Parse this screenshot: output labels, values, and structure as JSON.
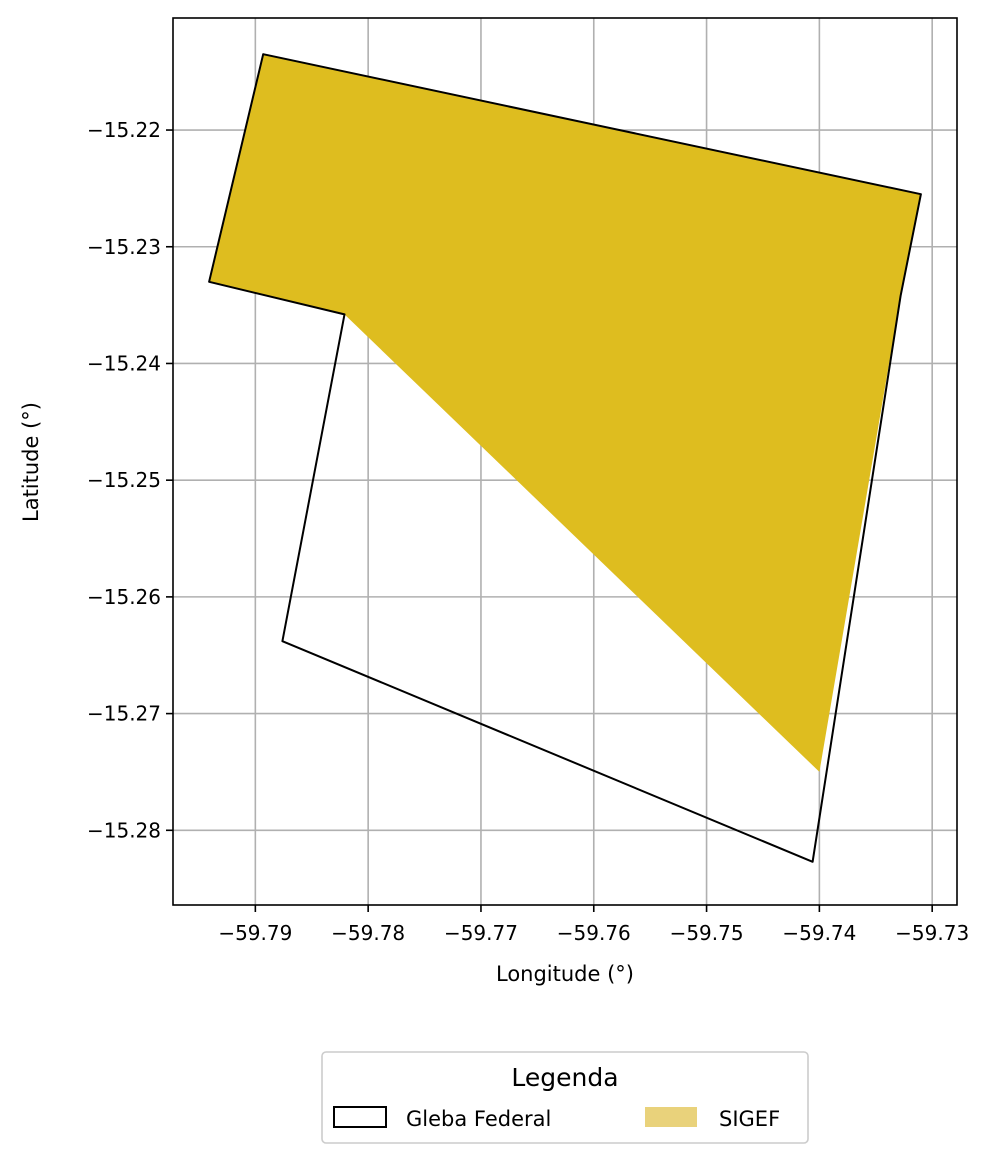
{
  "chart_data": {
    "type": "map",
    "xlabel": "Longitude (°)",
    "ylabel": "Latitude (°)",
    "xlim": [
      -59.7973,
      -59.7278
    ],
    "ylim": [
      -15.2864,
      -15.2104
    ],
    "xticks": [
      -59.79,
      -59.78,
      -59.77,
      -59.76,
      -59.75,
      -59.74,
      -59.73
    ],
    "xtick_labels": [
      "−59.79",
      "−59.78",
      "−59.77",
      "−59.76",
      "−59.75",
      "−59.74",
      "−59.73"
    ],
    "yticks": [
      -15.22,
      -15.23,
      -15.24,
      -15.25,
      -15.26,
      -15.27,
      -15.28
    ],
    "ytick_labels": [
      "−15.22",
      "−15.23",
      "−15.24",
      "−15.25",
      "−15.26",
      "−15.27",
      "−15.28"
    ],
    "grid": true,
    "layers": [
      {
        "name": "SIGEF",
        "kind": "filled-polygon",
        "fill": "#DEBD1F",
        "points": [
          [
            -59.7893,
            -15.2135
          ],
          [
            -59.731,
            -15.2255
          ],
          [
            -59.7328,
            -15.2342
          ],
          [
            -59.74,
            -15.275
          ],
          [
            -59.7821,
            -15.2358
          ],
          [
            -59.7941,
            -15.233
          ]
        ]
      },
      {
        "name": "Gleba Federal",
        "kind": "outline-polygon",
        "stroke": "#000000",
        "points": [
          [
            -59.7893,
            -15.2135
          ],
          [
            -59.731,
            -15.2255
          ],
          [
            -59.7328,
            -15.2342
          ],
          [
            -59.7406,
            -15.2827
          ],
          [
            -59.7876,
            -15.2638
          ],
          [
            -59.7821,
            -15.2358
          ],
          [
            -59.7941,
            -15.233
          ]
        ]
      }
    ],
    "legend": {
      "title": "Legenda",
      "placement": "bottom-center",
      "entries": [
        {
          "label": "Gleba Federal",
          "symbol": "outline",
          "color": "#000000"
        },
        {
          "label": "SIGEF",
          "symbol": "filled",
          "color": "#E9D27B"
        }
      ]
    }
  }
}
